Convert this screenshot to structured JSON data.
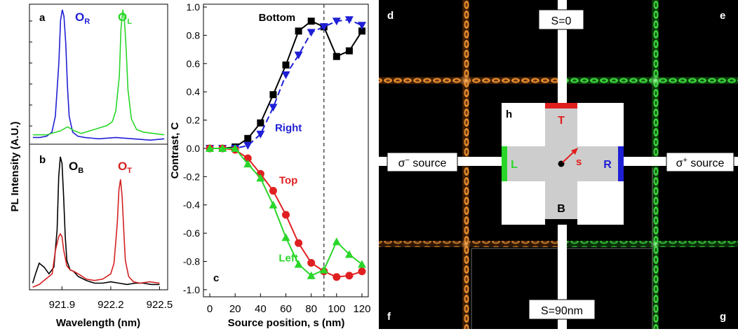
{
  "chart_data": [
    {
      "id": "a",
      "type": "line",
      "panel_label": "a",
      "ylabel": "PL Intensity (A.U.)",
      "xlim": [
        921.7,
        922.5
      ],
      "series": [
        {
          "name": "O_R",
          "label_main": "O",
          "label_sub": "R",
          "color": "#1f1fd6",
          "x": [
            921.72,
            921.76,
            921.8,
            921.83,
            921.85,
            921.87,
            921.88,
            921.89,
            921.9,
            921.91,
            921.92,
            921.93,
            921.95,
            921.98,
            922.02,
            922.1,
            922.2,
            922.3,
            922.4,
            922.48
          ],
          "y": [
            0.04,
            0.04,
            0.05,
            0.08,
            0.2,
            0.6,
            0.92,
            1.0,
            0.95,
            0.75,
            0.42,
            0.2,
            0.08,
            0.05,
            0.04,
            0.03,
            0.04,
            0.03,
            0.02,
            0.03
          ]
        },
        {
          "name": "O_L",
          "label_main": "O",
          "label_sub": "L",
          "color": "#2ad62a",
          "x": [
            921.72,
            921.8,
            921.88,
            921.92,
            921.96,
            922.0,
            922.05,
            922.1,
            922.15,
            922.18,
            922.2,
            922.22,
            922.23,
            922.24,
            922.25,
            922.26,
            922.27,
            922.29,
            922.32,
            922.36,
            922.42,
            922.48
          ],
          "y": [
            0.06,
            0.06,
            0.09,
            0.12,
            0.09,
            0.07,
            0.09,
            0.11,
            0.13,
            0.16,
            0.24,
            0.5,
            0.86,
            1.0,
            0.92,
            0.7,
            0.4,
            0.18,
            0.1,
            0.08,
            0.07,
            0.06
          ]
        }
      ]
    },
    {
      "id": "b",
      "type": "line",
      "panel_label": "b",
      "xlabel": "Wavelength (nm)",
      "xticks": [
        "921.9",
        "922.2",
        "922.5"
      ],
      "xtick_values": [
        921.9,
        922.2,
        922.5
      ],
      "xlim": [
        921.7,
        922.55
      ],
      "series": [
        {
          "name": "O_B",
          "label_main": "O",
          "label_sub": "B",
          "color": "#000000",
          "x": [
            921.72,
            921.74,
            921.76,
            921.79,
            921.82,
            921.85,
            921.87,
            921.88,
            921.89,
            921.9,
            921.91,
            921.92,
            921.93,
            921.95,
            921.97,
            922.0,
            922.05,
            922.1,
            922.15,
            922.2,
            922.25,
            922.3,
            922.35,
            922.4,
            922.45,
            922.5
          ],
          "y": [
            0.05,
            0.13,
            0.2,
            0.17,
            0.12,
            0.17,
            0.45,
            0.85,
            1.0,
            0.95,
            0.7,
            0.4,
            0.22,
            0.15,
            0.14,
            0.1,
            0.07,
            0.05,
            0.05,
            0.06,
            0.05,
            0.04,
            0.05,
            0.05,
            0.04,
            0.04
          ]
        },
        {
          "name": "O_T",
          "label_main": "O",
          "label_sub": "T",
          "color": "#d42020",
          "x": [
            921.72,
            921.76,
            921.8,
            921.84,
            921.86,
            921.88,
            921.89,
            921.9,
            921.91,
            921.93,
            921.95,
            921.97,
            922.0,
            922.05,
            922.1,
            922.15,
            922.2,
            922.22,
            922.24,
            922.25,
            922.26,
            922.27,
            922.28,
            922.29,
            922.31,
            922.34,
            922.38,
            922.44,
            922.5
          ],
          "y": [
            0.02,
            0.04,
            0.08,
            0.12,
            0.3,
            0.4,
            0.42,
            0.4,
            0.3,
            0.18,
            0.15,
            0.14,
            0.12,
            0.08,
            0.07,
            0.08,
            0.12,
            0.2,
            0.5,
            0.75,
            0.83,
            0.7,
            0.45,
            0.22,
            0.1,
            0.06,
            0.05,
            0.06,
            0.05
          ]
        }
      ]
    },
    {
      "id": "c",
      "type": "line",
      "panel_label": "c",
      "xlabel": "Source position, s (nm)",
      "ylabel": "Contrast, C",
      "xlim": [
        -5,
        125
      ],
      "ylim": [
        -1.05,
        1.02
      ],
      "xticks": [
        0,
        20,
        40,
        60,
        80,
        100,
        120
      ],
      "yticks": [
        -1.0,
        -0.8,
        -0.6,
        -0.4,
        -0.2,
        0.0,
        0.2,
        0.4,
        0.6,
        0.8,
        1.0
      ],
      "ytick_labels": [
        "-1.0",
        "-0.8",
        "-0.6",
        "-0.4",
        "-0.2",
        "0.0",
        "0.2",
        "0.4",
        "0.6",
        "0.8",
        "1.0"
      ],
      "dashed_vline_x": 90,
      "series": [
        {
          "name": "Bottom",
          "color": "#000000",
          "marker": "square",
          "dash": "solid",
          "x": [
            0,
            10,
            20,
            30,
            40,
            50,
            60,
            70,
            80,
            90,
            100,
            110,
            120
          ],
          "y": [
            0.0,
            0.0,
            0.01,
            0.07,
            0.18,
            0.38,
            0.59,
            0.83,
            0.9,
            0.86,
            0.65,
            0.69,
            0.83
          ]
        },
        {
          "name": "Right",
          "color": "#1f1fd6",
          "marker": "triangle-down",
          "dash": "dashed",
          "x": [
            0,
            10,
            20,
            30,
            40,
            50,
            60,
            70,
            80,
            90,
            100,
            110,
            120
          ],
          "y": [
            0.0,
            0.0,
            0.0,
            0.02,
            0.1,
            0.29,
            0.52,
            0.66,
            0.82,
            0.86,
            0.9,
            0.91,
            0.87
          ]
        },
        {
          "name": "Top",
          "color": "#e02020",
          "marker": "circle",
          "dash": "solid",
          "x": [
            0,
            10,
            20,
            30,
            40,
            50,
            60,
            70,
            80,
            90,
            100,
            110,
            120
          ],
          "y": [
            0.0,
            0.0,
            -0.01,
            -0.07,
            -0.18,
            -0.3,
            -0.47,
            -0.67,
            -0.81,
            -0.87,
            -0.91,
            -0.9,
            -0.87
          ]
        },
        {
          "name": "Left",
          "color": "#2ad62a",
          "marker": "triangle-up",
          "dash": "solid",
          "x": [
            0,
            10,
            20,
            30,
            40,
            50,
            60,
            70,
            80,
            90,
            100,
            110,
            120
          ],
          "y": [
            0.0,
            0.0,
            0.0,
            -0.11,
            -0.21,
            -0.4,
            -0.63,
            -0.82,
            -0.9,
            -0.86,
            -0.66,
            -0.75,
            -0.82
          ]
        }
      ],
      "annotations": [
        {
          "text": "Bottom",
          "x": 53,
          "y": 0.9,
          "color": "#000000"
        },
        {
          "text": "Right",
          "x": 62,
          "y": 0.12,
          "color": "#1f1fd6"
        },
        {
          "text": "Top",
          "x": 62,
          "y": -0.25,
          "color": "#e02020"
        },
        {
          "text": "Left",
          "x": 62,
          "y": -0.8,
          "color": "#2ad62a"
        }
      ]
    }
  ],
  "simulation": {
    "panel_labels": {
      "d": "d",
      "e": "e",
      "f": "f",
      "g": "g",
      "h": "h"
    },
    "top_label": "S=0",
    "bottom_label": "S=90nm",
    "left_source_prefix": "σ",
    "left_source_sup": "−",
    "left_source_suffix": " source",
    "right_source_prefix": "σ",
    "right_source_sup": "+",
    "right_source_suffix": " source",
    "left_field_color": "#e08a2c",
    "right_field_color": "#3bd13b"
  },
  "schematic": {
    "top_label": "T",
    "bottom_label": "B",
    "left_label": "L",
    "right_label": "R",
    "source_label": "s",
    "colors": {
      "top": "#e01f1f",
      "bottom": "#000000",
      "left": "#2ad62a",
      "right": "#1f1fd6",
      "body": "#cdcdcd"
    }
  }
}
